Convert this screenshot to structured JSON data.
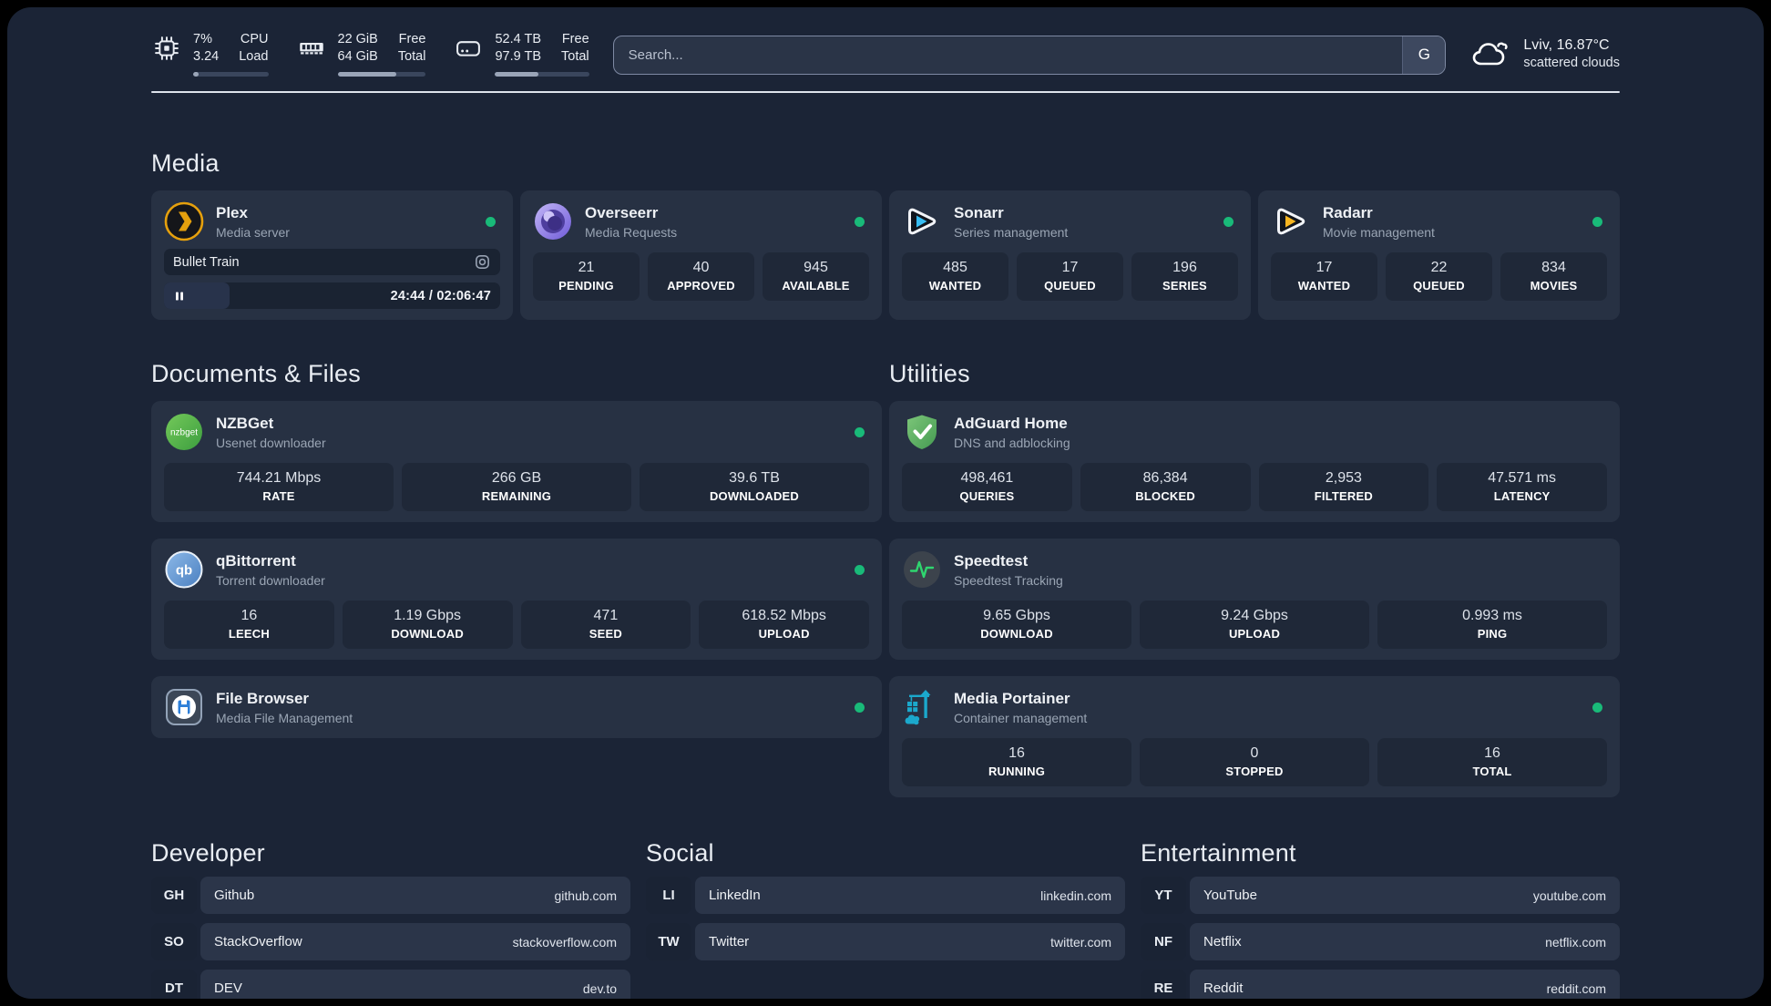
{
  "theme": {
    "page_bg": "#1b2436",
    "card_bg": "#273143",
    "tile_bg": "#1f2838",
    "status_green": "#19ba79",
    "plex_amber": "#e5a00d",
    "text_primary": "#eef1f5",
    "text_secondary": "#9aa5b4"
  },
  "header": {
    "system_stats": [
      {
        "icon": "cpu-icon",
        "col1_top": "7%",
        "col1_bottom": "3.24",
        "col2_top": "CPU",
        "col2_bottom": "Load",
        "progress_pct": 7
      },
      {
        "icon": "ram-icon",
        "col1_top": "22 GiB",
        "col1_bottom": "64 GiB",
        "col2_top": "Free",
        "col2_bottom": "Total",
        "progress_pct": 66
      },
      {
        "icon": "disk-icon",
        "col1_top": "52.4 TB",
        "col1_bottom": "97.9 TB",
        "col2_top": "Free",
        "col2_bottom": "Total",
        "progress_pct": 46
      }
    ],
    "search": {
      "placeholder": "Search...",
      "engine_button": "G"
    },
    "weather": {
      "location_temp": "Lviv, 16.87°C",
      "condition": "scattered clouds"
    }
  },
  "icons": {
    "qbittorrent_text": "qb",
    "nzbget_text": "nzbget"
  },
  "sections": {
    "media": {
      "title": "Media",
      "plex": {
        "name": "Plex",
        "subtitle": "Media server",
        "now_playing": "Bullet Train",
        "elapsed_total": "24:44 / 02:06:47",
        "progress_pct": 19.5
      },
      "overseerr": {
        "name": "Overseerr",
        "subtitle": "Media Requests",
        "stats": [
          {
            "value": "21",
            "label": "PENDING"
          },
          {
            "value": "40",
            "label": "APPROVED"
          },
          {
            "value": "945",
            "label": "AVAILABLE"
          }
        ]
      },
      "sonarr": {
        "name": "Sonarr",
        "subtitle": "Series management",
        "stats": [
          {
            "value": "485",
            "label": "WANTED"
          },
          {
            "value": "17",
            "label": "QUEUED"
          },
          {
            "value": "196",
            "label": "SERIES"
          }
        ]
      },
      "radarr": {
        "name": "Radarr",
        "subtitle": "Movie management",
        "stats": [
          {
            "value": "17",
            "label": "WANTED"
          },
          {
            "value": "22",
            "label": "QUEUED"
          },
          {
            "value": "834",
            "label": "MOVIES"
          }
        ]
      }
    },
    "documents": {
      "title": "Documents & Files",
      "nzbget": {
        "name": "NZBGet",
        "subtitle": "Usenet downloader",
        "stats": [
          {
            "value": "744.21 Mbps",
            "label": "RATE"
          },
          {
            "value": "266 GB",
            "label": "REMAINING"
          },
          {
            "value": "39.6 TB",
            "label": "DOWNLOADED"
          }
        ]
      },
      "qbittorrent": {
        "name": "qBittorrent",
        "subtitle": "Torrent downloader",
        "stats": [
          {
            "value": "16",
            "label": "LEECH"
          },
          {
            "value": "1.19 Gbps",
            "label": "DOWNLOAD"
          },
          {
            "value": "471",
            "label": "SEED"
          },
          {
            "value": "618.52 Mbps",
            "label": "UPLOAD"
          }
        ]
      },
      "filebrowser": {
        "name": "File Browser",
        "subtitle": "Media File Management"
      }
    },
    "utilities": {
      "title": "Utilities",
      "adguard": {
        "name": "AdGuard Home",
        "subtitle": "DNS and adblocking",
        "stats": [
          {
            "value": "498,461",
            "label": "QUERIES"
          },
          {
            "value": "86,384",
            "label": "BLOCKED"
          },
          {
            "value": "2,953",
            "label": "FILTERED"
          },
          {
            "value": "47.571 ms",
            "label": "LATENCY"
          }
        ]
      },
      "speedtest": {
        "name": "Speedtest",
        "subtitle": "Speedtest Tracking",
        "stats": [
          {
            "value": "9.65 Gbps",
            "label": "DOWNLOAD"
          },
          {
            "value": "9.24 Gbps",
            "label": "UPLOAD"
          },
          {
            "value": "0.993 ms",
            "label": "PING"
          }
        ]
      },
      "portainer": {
        "name": "Media Portainer",
        "subtitle": "Container management",
        "stats": [
          {
            "value": "16",
            "label": "RUNNING"
          },
          {
            "value": "0",
            "label": "STOPPED"
          },
          {
            "value": "16",
            "label": "TOTAL"
          }
        ]
      }
    },
    "bookmarks": [
      {
        "title": "Developer",
        "links": [
          {
            "abbr": "GH",
            "name": "Github",
            "url": "github.com"
          },
          {
            "abbr": "SO",
            "name": "StackOverflow",
            "url": "stackoverflow.com"
          },
          {
            "abbr": "DT",
            "name": "DEV",
            "url": "dev.to"
          }
        ]
      },
      {
        "title": "Social",
        "links": [
          {
            "abbr": "LI",
            "name": "LinkedIn",
            "url": "linkedin.com"
          },
          {
            "abbr": "TW",
            "name": "Twitter",
            "url": "twitter.com"
          }
        ]
      },
      {
        "title": "Entertainment",
        "links": [
          {
            "abbr": "YT",
            "name": "YouTube",
            "url": "youtube.com"
          },
          {
            "abbr": "NF",
            "name": "Netflix",
            "url": "netflix.com"
          },
          {
            "abbr": "RE",
            "name": "Reddit",
            "url": "reddit.com"
          }
        ]
      }
    ]
  }
}
